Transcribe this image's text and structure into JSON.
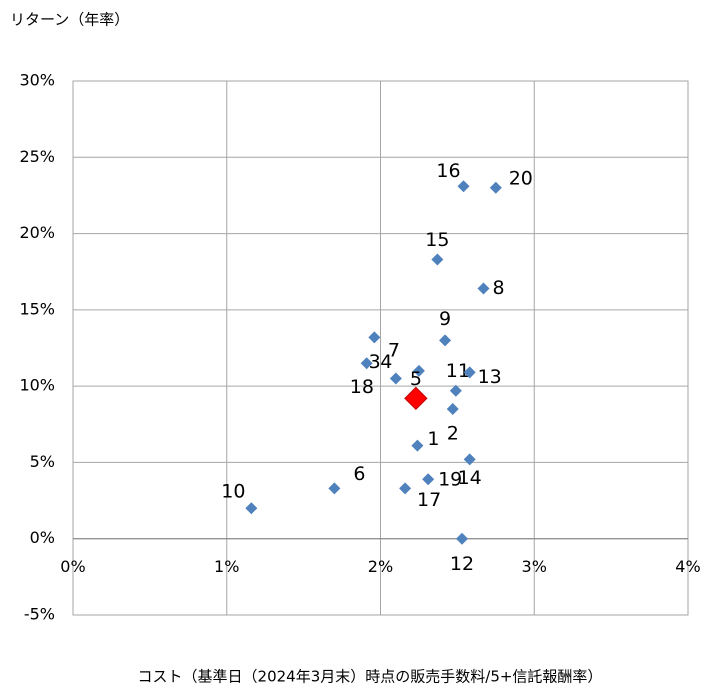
{
  "chart_data": {
    "type": "scatter",
    "title": "リターン（年率）",
    "x_label": "コスト（基準日（2024年3月末）時点の販売手数料/5+信託報酬率）",
    "xlim": [
      0,
      4
    ],
    "xticks": [
      {
        "value": 0,
        "label": "0%"
      },
      {
        "value": 1,
        "label": "1%"
      },
      {
        "value": 2,
        "label": "2%"
      },
      {
        "value": 3,
        "label": "3%"
      },
      {
        "value": 4,
        "label": "4%"
      }
    ],
    "ylim": [
      -5,
      30
    ],
    "yticks": [
      {
        "value": -5,
        "label": "-5%"
      },
      {
        "value": 0,
        "label": "0%"
      },
      {
        "value": 5,
        "label": "5%"
      },
      {
        "value": 10,
        "label": "10%"
      },
      {
        "value": 15,
        "label": "15%"
      },
      {
        "value": 20,
        "label": "20%"
      },
      {
        "value": 25,
        "label": "25%"
      },
      {
        "value": 30,
        "label": "30%"
      }
    ],
    "grid": true,
    "series": [
      {
        "color": "#4f81bd",
        "marker_size": 6,
        "labels": [
          "16",
          "20",
          "15",
          "8",
          "9",
          "4",
          "3",
          "7",
          "18",
          "11",
          "13",
          "2",
          "1",
          "14",
          "19",
          "17",
          "6",
          "10",
          "12"
        ],
        "x": [
          2.54,
          2.75,
          2.37,
          2.67,
          2.42,
          1.96,
          1.91,
          2.25,
          2.1,
          2.49,
          2.58,
          2.47,
          2.24,
          2.58,
          2.31,
          2.16,
          1.7,
          1.16,
          2.53
        ],
        "values": [
          23.1,
          23.0,
          18.3,
          16.4,
          13.0,
          13.2,
          11.5,
          11.0,
          10.5,
          9.7,
          10.9,
          8.5,
          6.1,
          5.2,
          3.9,
          3.3,
          3.3,
          2.0,
          0
        ]
      },
      {
        "color": "#ff0000",
        "marker_size": 11,
        "labels": [
          "5"
        ],
        "x": [
          2.23
        ],
        "values": [
          9.2
        ]
      }
    ]
  }
}
